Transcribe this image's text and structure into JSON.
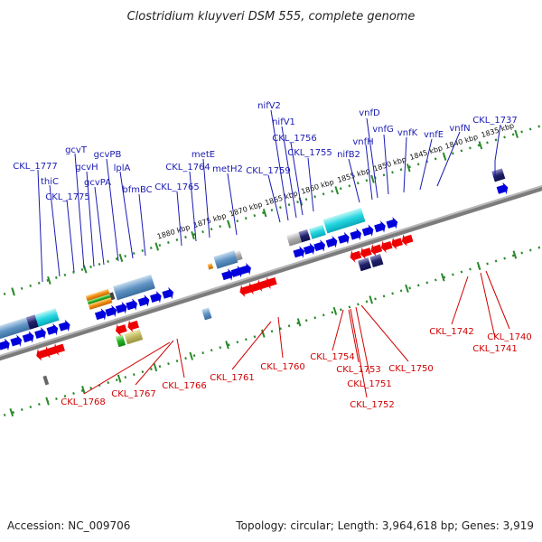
{
  "title": "Clostridium kluyveri DSM 555, complete genome",
  "footer": {
    "accession": "Accession: NC_009706",
    "summary": "Topology: circular; Length: 3,964,618 bp; Genes: 3,919"
  },
  "colors": {
    "forward_label": "#1a1ab4",
    "reverse_label": "#d00000",
    "forward_arrow": "#0000dd",
    "reverse_arrow": "#ee0000",
    "backbone": "#888888",
    "ruler_dot": "#2a8a2a"
  },
  "kbp_ticks": [
    "1835 kbp",
    "1840 kbp",
    "1845 kbp",
    "1850 kbp",
    "1855 kbp",
    "1860 kbp",
    "1865 kbp",
    "1870 kbp",
    "1875 kbp",
    "1880 kbp"
  ],
  "forward_labels": [
    "CKL_1737",
    "vnfN",
    "vnfE",
    "vnfK",
    "vnfG",
    "vnfD",
    "vnfH",
    "nifB2",
    "CKL_1755",
    "CKL_1756",
    "nifV1",
    "nifV2",
    "CKL_1759",
    "metH2",
    "metE",
    "CKL_1764",
    "CKL_1765",
    "bfmBC",
    "lplA",
    "gcvPB",
    "gcvPA",
    "gcvH",
    "gcvT",
    "CKL_1775",
    "thiC",
    "CKL_1777"
  ],
  "reverse_labels": [
    "CKL_1740",
    "CKL_1741",
    "CKL_1742",
    "CKL_1750",
    "CKL_1751",
    "CKL_1752",
    "CKL_1753",
    "CKL_1754",
    "CKL_1760",
    "CKL_1761",
    "CKL_1766",
    "CKL_1767",
    "CKL_1768"
  ]
}
